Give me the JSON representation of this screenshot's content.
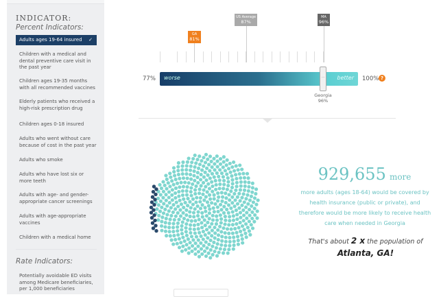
{
  "sidebar": {
    "title": "INDICATOR:",
    "percent_heading": "Percent Indicators:",
    "selected_item": "Adults ages 19-64 insured",
    "check_icon": "✓",
    "items": [
      "Children with a medical and dental preventive care visit in the past year",
      "Children ages 19-35 months with all recommended vaccines",
      "Elderly patients who received a high-risk prescription drug",
      "Children ages 0-18 insured",
      "Adults who went without care because of cost in the past year",
      "Adults who smoke",
      "Adults who have lost six or more teeth",
      "Adults with age- and gender-appropriate cancer screenings",
      "Adults with age-appropriate vaccines",
      "Children with a medical home"
    ],
    "rate_heading": "Rate Indicators:",
    "rate_items": [
      "Potentially avoidable ED visits among Medicare beneficiaries, per 1,000 beneficiaries"
    ]
  },
  "scale": {
    "min_label": "77%",
    "max_label": "100%",
    "min": 77,
    "max": 100,
    "worse": "worse",
    "better": "better",
    "help_icon": "?",
    "markers": [
      {
        "label": "GA",
        "value_label": "81%",
        "value": 81,
        "color": "#f0801e"
      },
      {
        "label": "US Average",
        "value_label": "87%",
        "value": 87,
        "color": "#a9a9a9"
      },
      {
        "label": "MA",
        "value_label": "96%",
        "value": 96,
        "color": "#666666"
      }
    ],
    "handle": {
      "state": "Georgia",
      "value_label": "96%",
      "value": 96
    }
  },
  "impact": {
    "number": "929,655",
    "more": "more",
    "description": "more adults (ages 18-64) would be covered by health insurance (public or private), and therefore would be more likely to receive health care when needed in Georgia",
    "pop_pre": "That's about ",
    "pop_mult": "2 x",
    "pop_mid": " the population of ",
    "pop_city": "Atlanta, GA!"
  },
  "colors": {
    "teal": "#6cc3c3",
    "navy": "#1c3f66",
    "dot_light": "#7fd6cf",
    "dot_dark": "#2a4a6b"
  }
}
